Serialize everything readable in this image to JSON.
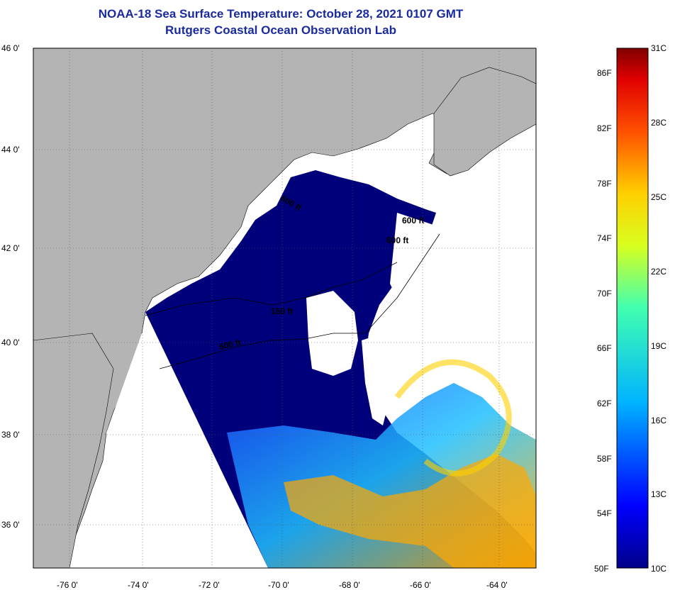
{
  "title": {
    "line1": "NOAA-18 Sea Surface Temperature:  October 28, 2021 0107 GMT",
    "line2": "Rutgers Coastal Ocean Observation Lab"
  },
  "map": {
    "lat_labels": [
      "46 0'",
      "44 0'",
      "42 0'",
      "40 0'",
      "38 0'",
      "36 0'"
    ],
    "lon_labels": [
      "-76 0'",
      "-74 0'",
      "-72 0'",
      "-70 0'",
      "-68 0'",
      "-66 0'",
      "-64 0'"
    ],
    "contours": [
      "150 ft",
      "600 ft",
      "600 ft",
      "600 ft",
      "600 ft"
    ],
    "colors": {
      "land": "#b4b4b4",
      "cloud": "#ffffff",
      "cold_water": "#00007a"
    }
  },
  "colorbar": {
    "fahrenheit": [
      "86F",
      "82F",
      "78F",
      "74F",
      "70F",
      "66F",
      "62F",
      "58F",
      "54F",
      "50F"
    ],
    "celsius": [
      "31C",
      "28C",
      "25C",
      "22C",
      "19C",
      "16C",
      "13C",
      "10C"
    ]
  }
}
